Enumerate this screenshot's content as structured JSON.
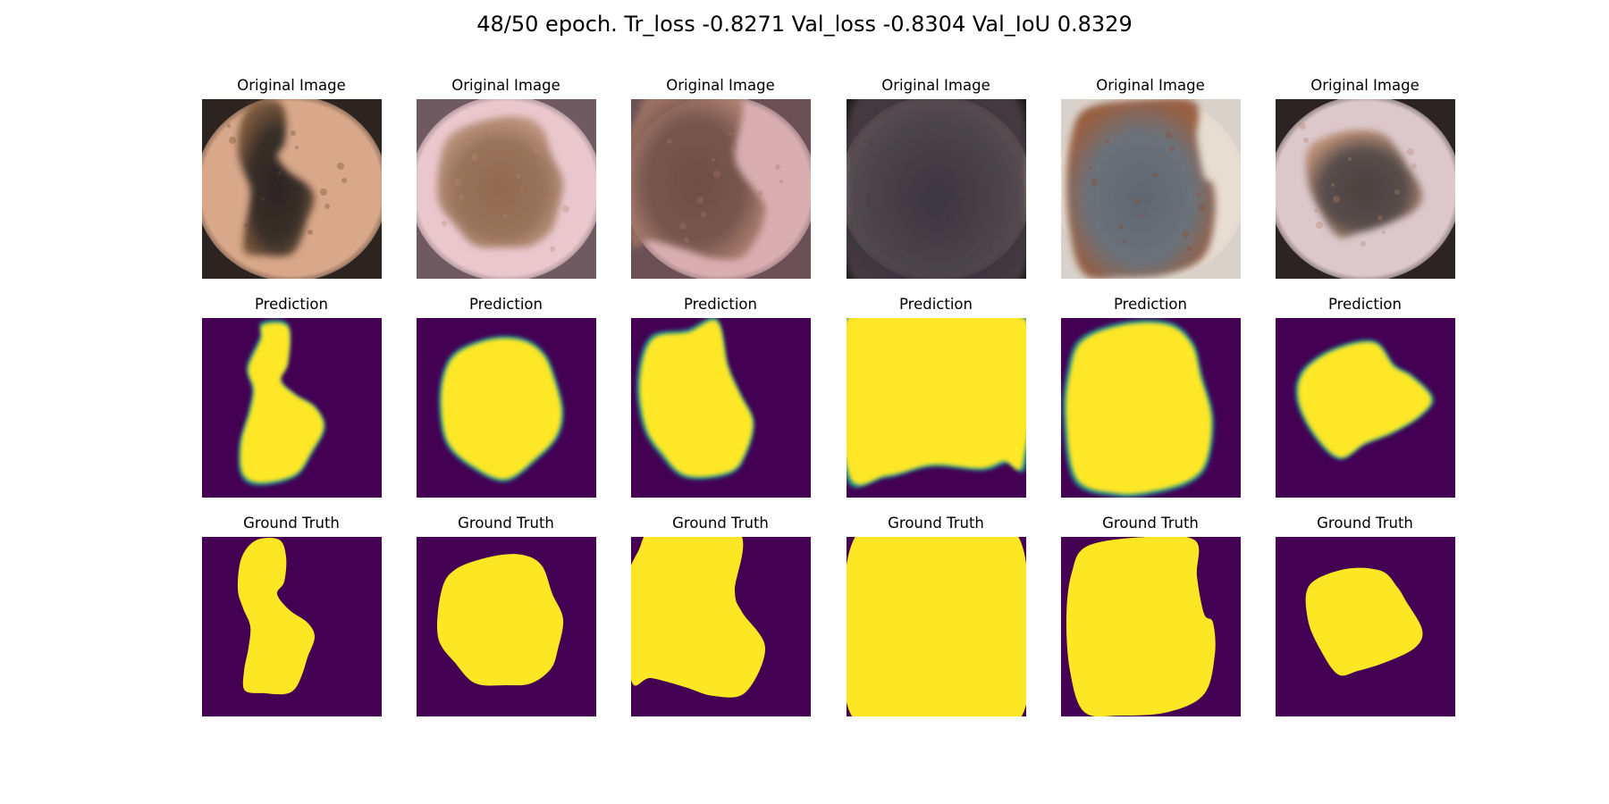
{
  "figure": {
    "suptitle": "48/50 epoch. Tr_loss -0.8271 Val_loss -0.8304 Val_IoU 0.8329"
  },
  "rows": [
    {
      "kind": "original",
      "titles": [
        "Original Image",
        "Original Image",
        "Original Image",
        "Original Image",
        "Original Image",
        "Original Image"
      ]
    },
    {
      "kind": "prediction",
      "titles": [
        "Prediction",
        "Prediction",
        "Prediction",
        "Prediction",
        "Prediction",
        "Prediction"
      ]
    },
    {
      "kind": "ground_truth",
      "titles": [
        "Ground Truth",
        "Ground Truth",
        "Ground Truth",
        "Ground Truth",
        "Ground Truth",
        "Ground Truth"
      ]
    }
  ],
  "colors": {
    "mask_background": "#440154",
    "mask_foreground": "#fde725",
    "mask_edge": "#21918c"
  }
}
